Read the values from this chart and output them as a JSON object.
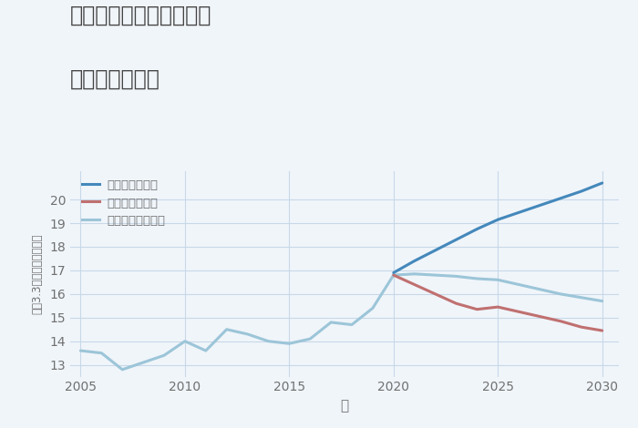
{
  "title_line1": "福岡県筑紫野市上古賀の",
  "title_line2": "土地の価格推移",
  "xlabel": "年",
  "ylabel": "坪（3.3㎡）単価（万円）",
  "background_color": "#f0f5fa",
  "plot_bg_color": "#f0f5fa",
  "xlim": [
    2004.5,
    2030.8
  ],
  "ylim": [
    12.5,
    21.2
  ],
  "xticks": [
    2005,
    2010,
    2015,
    2020,
    2025,
    2030
  ],
  "yticks": [
    13,
    14,
    15,
    16,
    17,
    18,
    19,
    20
  ],
  "grid_color": "#c8d8e8",
  "normal_scenario": {
    "label": "ノーマルシナリオ",
    "color": "#9cc5d8",
    "linewidth": 2.2,
    "years": [
      2005,
      2006,
      2007,
      2008,
      2009,
      2010,
      2011,
      2012,
      2013,
      2014,
      2015,
      2016,
      2017,
      2018,
      2019,
      2020,
      2021,
      2022,
      2023,
      2024,
      2025,
      2026,
      2027,
      2028,
      2029,
      2030
    ],
    "values": [
      13.6,
      13.5,
      12.8,
      13.1,
      13.4,
      14.0,
      13.6,
      14.5,
      14.3,
      14.0,
      13.9,
      14.1,
      14.8,
      14.7,
      15.4,
      16.8,
      16.85,
      16.8,
      16.75,
      16.65,
      16.6,
      16.4,
      16.2,
      16.0,
      15.85,
      15.7
    ]
  },
  "good_scenario": {
    "label": "グッドシナリオ",
    "color": "#4488bb",
    "linewidth": 2.2,
    "years": [
      2020,
      2021,
      2022,
      2023,
      2024,
      2025,
      2026,
      2027,
      2028,
      2029,
      2030
    ],
    "values": [
      16.9,
      17.4,
      17.85,
      18.3,
      18.75,
      19.15,
      19.45,
      19.75,
      20.05,
      20.35,
      20.7
    ]
  },
  "bad_scenario": {
    "label": "バッドシナリオ",
    "color": "#c07070",
    "linewidth": 2.2,
    "years": [
      2020,
      2021,
      2022,
      2023,
      2024,
      2025,
      2026,
      2027,
      2028,
      2029,
      2030
    ],
    "values": [
      16.8,
      16.4,
      16.0,
      15.6,
      15.35,
      15.45,
      15.25,
      15.05,
      14.85,
      14.6,
      14.45
    ]
  },
  "legend_items": [
    {
      "label": "グッドシナリオ",
      "color": "#4488bb"
    },
    {
      "label": "バッドシナリオ",
      "color": "#c07070"
    },
    {
      "label": "ノーマルシナリオ",
      "color": "#9cc5d8"
    }
  ],
  "title_color": "#444444",
  "tick_color": "#707070",
  "title_fontsize": 17,
  "tick_fontsize": 10,
  "legend_fontsize": 9.5
}
